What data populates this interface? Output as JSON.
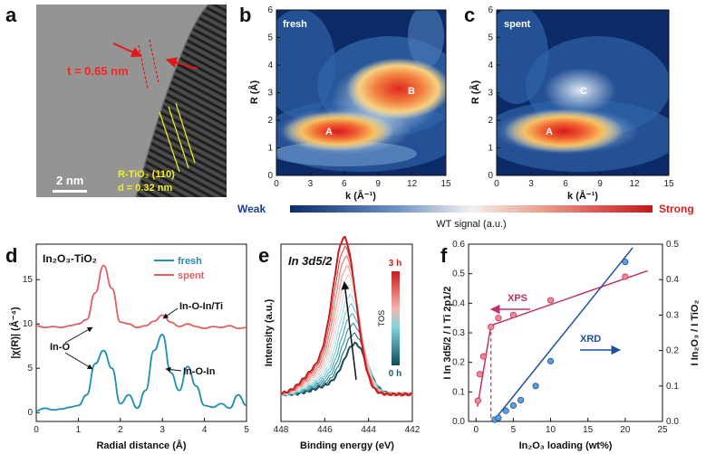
{
  "panels": {
    "a": {
      "label": "a",
      "thickness": "t = 0.65 nm",
      "scale": "2 nm",
      "phase": "R-TiO₂ (110)",
      "dspacing": "d = 0.32 nm"
    },
    "b": {
      "label": "b",
      "tag": "fresh",
      "peakA": "A",
      "peakB": "B"
    },
    "c": {
      "label": "c",
      "tag": "spent",
      "peakA": "A",
      "peakC": "C"
    },
    "d": {
      "label": "d",
      "title": "In₂O₃-TiO₂",
      "legend_fresh": "fresh",
      "legend_spent": "spent",
      "ann1": "In-O-In/Ti",
      "ann2": "In-O",
      "ann3": "In-O-In"
    },
    "e": {
      "label": "e",
      "title": "In 3d5/2",
      "tos_top": "3 h",
      "tos_bottom": "0 h",
      "tos_label": "TOS"
    },
    "f": {
      "label": "f",
      "xps": "XPS",
      "xrd": "XRD"
    }
  },
  "colorbar": {
    "weak": "Weak",
    "strong": "Strong",
    "title": "WT signal (a.u.)"
  },
  "colors": {
    "fresh": "#1f8fb0",
    "spent": "#e06060",
    "xps": "#c0306a",
    "xrd": "#1f4fa0",
    "weak": "#1a3f8f",
    "strong": "#d42020"
  },
  "chart_data": [
    {
      "type": "heatmap",
      "panel": "b",
      "xlabel": "k (Å⁻¹)",
      "ylabel": "R (Å)",
      "xlim": [
        0,
        15
      ],
      "ylim": [
        0,
        6
      ],
      "xticks": [
        "0",
        "3",
        "6",
        "9",
        "12",
        "15"
      ],
      "yticks": [
        "0",
        "1",
        "2",
        "3",
        "4",
        "5",
        "6"
      ],
      "peaks": [
        {
          "label": "A",
          "k": 5,
          "R": 1.7
        },
        {
          "label": "B",
          "k": 11.5,
          "R": 3.1
        }
      ]
    },
    {
      "type": "heatmap",
      "panel": "c",
      "xlabel": "k (Å⁻¹)",
      "ylabel": "R (Å)",
      "xlim": [
        0,
        15
      ],
      "ylim": [
        0,
        6
      ],
      "xticks": [
        "0",
        "3",
        "6",
        "9",
        "12",
        "15"
      ],
      "yticks": [
        "0",
        "1",
        "2",
        "3",
        "4",
        "5",
        "6"
      ],
      "peaks": [
        {
          "label": "A",
          "k": 5,
          "R": 1.6
        },
        {
          "label": "C",
          "k": 8,
          "R": 3.3
        }
      ]
    },
    {
      "type": "line",
      "panel": "d",
      "xlabel": "Radial distance (Å)",
      "ylabel": "|χ(R)| (Å⁻⁴)",
      "xlim": [
        0,
        5
      ],
      "ylim": [
        -1,
        19
      ],
      "xticks": [
        "0",
        "1",
        "2",
        "3",
        "4",
        "5"
      ],
      "yticks": [
        "0",
        "5",
        "10",
        "15"
      ],
      "series": [
        {
          "name": "fresh",
          "x": [
            0,
            0.2,
            0.4,
            0.6,
            0.8,
            1.0,
            1.2,
            1.4,
            1.6,
            1.8,
            2.0,
            2.2,
            2.4,
            2.6,
            2.8,
            3.0,
            3.2,
            3.4,
            3.6,
            3.8,
            4.0,
            4.2,
            4.4,
            4.6,
            4.8,
            5.0
          ],
          "y": [
            0.2,
            0.5,
            0.3,
            0.4,
            0.6,
            0.8,
            2.0,
            5.5,
            7.0,
            5.0,
            1.0,
            2.0,
            0.5,
            2.5,
            7.0,
            8.8,
            4.5,
            2.5,
            5.2,
            3.0,
            0.8,
            0.6,
            1.0,
            0.5,
            2.0,
            0.8
          ]
        },
        {
          "name": "spent",
          "x": [
            0,
            0.2,
            0.4,
            0.6,
            0.8,
            1.0,
            1.2,
            1.4,
            1.6,
            1.8,
            2.0,
            2.2,
            2.4,
            2.6,
            2.8,
            3.0,
            3.2,
            3.4,
            3.6,
            3.8,
            4.0,
            4.2,
            4.4,
            4.6,
            4.8,
            5.0
          ],
          "y": [
            9.8,
            9.6,
            9.7,
            9.6,
            9.8,
            10.0,
            10.5,
            13.5,
            16.6,
            14.0,
            10.2,
            10.0,
            9.6,
            9.8,
            10.3,
            11.0,
            10.2,
            9.7,
            10.0,
            9.7,
            9.5,
            9.7,
            9.6,
            9.8,
            9.5,
            9.6
          ]
        }
      ]
    },
    {
      "type": "line",
      "panel": "e",
      "xlabel": "Binding energy (eV)",
      "ylabel": "Intensity (a.u.)",
      "xlim": [
        448,
        442
      ],
      "xticks": [
        "448",
        "446",
        "444",
        "442"
      ],
      "n_curves": 12
    },
    {
      "type": "scatter",
      "panel": "f",
      "xlabel": "In₂O₃ loading (wt%)",
      "ylabel_left": "I In 3d5/2 / I Ti 2p1/2",
      "ylabel_right": "I In₂O₃ / I TiO₂",
      "xlim": [
        -1,
        25
      ],
      "xticks": [
        "0",
        "5",
        "10",
        "15",
        "20",
        "25"
      ],
      "ylim_left": [
        0,
        0.6
      ],
      "yticks_left": [
        "0.0",
        "0.1",
        "0.2",
        "0.3",
        "0.4",
        "0.5",
        "0.6"
      ],
      "ylim_right": [
        0,
        0.5
      ],
      "yticks_right": [
        "0.0",
        "0.1",
        "0.2",
        "0.3",
        "0.4",
        "0.5"
      ],
      "series": [
        {
          "name": "XPS",
          "axis": "left",
          "x": [
            0.25,
            0.5,
            1,
            2,
            3,
            5,
            10,
            20
          ],
          "y": [
            0.07,
            0.16,
            0.22,
            0.32,
            0.35,
            0.36,
            0.41,
            0.49
          ]
        },
        {
          "name": "XRD",
          "axis": "right",
          "x": [
            2.5,
            3,
            4,
            5,
            6,
            8,
            10,
            20
          ],
          "y": [
            0.005,
            0.01,
            0.03,
            0.045,
            0.06,
            0.1,
            0.17,
            0.45
          ]
        }
      ]
    }
  ]
}
